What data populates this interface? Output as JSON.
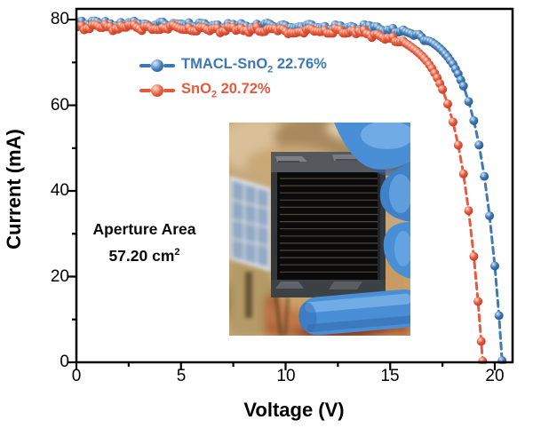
{
  "figure": {
    "x_axis": {
      "label": "Voltage (V)",
      "tick_labels": [
        "0",
        "5",
        "10",
        "15",
        "20"
      ],
      "tick_values": [
        0,
        5,
        10,
        15,
        20
      ],
      "minor_ticks": [
        2.5,
        7.5,
        12.5,
        17.5
      ]
    },
    "y_axis": {
      "label": "Current (mA)",
      "tick_labels": [
        "0",
        "20",
        "40",
        "60",
        "80"
      ],
      "tick_values": [
        0,
        20,
        40,
        60,
        80
      ],
      "minor_ticks": [
        10,
        30,
        50,
        70
      ]
    }
  },
  "legend": {
    "items": [
      {
        "name": "TMACL-SnO",
        "sub": "2",
        "suffix": " 22.76%",
        "color": "#3c78b6"
      },
      {
        "name": "SnO",
        "sub": "2",
        "suffix": " 20.72%",
        "color": "#e7593c"
      }
    ]
  },
  "annotation": {
    "line1": "Aperture Area",
    "line2": "57.20 cm",
    "line2_sup": "2"
  },
  "inset": {
    "content": "photo: dark solar module held by blue nitrile glove, rooftop solar panel and blurred ground in background"
  },
  "chart_data": {
    "type": "line+scatter (I-V curves)",
    "title": "",
    "xlabel": "Voltage (V)",
    "ylabel": "Current (mA)",
    "xlim": [
      0,
      20.85
    ],
    "ylim": [
      0,
      82.5
    ],
    "grid": false,
    "legend_position": "upper center",
    "series": [
      {
        "name": "TMACL-SnO2 22.76%",
        "color": "#3e7ab7",
        "color_dark": "#27578d",
        "color_light": "#d9eaf8",
        "noise": 0.45,
        "points": [
          [
            0,
            79.4
          ],
          [
            0.5,
            78.9
          ],
          [
            1,
            79.5
          ],
          [
            1.5,
            79.0
          ],
          [
            2,
            78.5
          ],
          [
            2.5,
            79.3
          ],
          [
            3,
            79.0
          ],
          [
            3.5,
            78.5
          ],
          [
            4,
            79.4
          ],
          [
            4.5,
            78.6
          ],
          [
            5,
            79.0
          ],
          [
            5.5,
            78.5
          ],
          [
            6,
            79.1
          ],
          [
            6.5,
            78.6
          ],
          [
            7,
            78.1
          ],
          [
            7.5,
            78.9
          ],
          [
            8,
            78.6
          ],
          [
            8.5,
            78.1
          ],
          [
            9,
            79.0
          ],
          [
            9.5,
            78.2
          ],
          [
            10,
            78.6
          ],
          [
            10.5,
            78.1
          ],
          [
            11,
            78.7
          ],
          [
            11.5,
            78.2
          ],
          [
            12,
            77.7
          ],
          [
            12.5,
            78.5
          ],
          [
            13,
            78.2
          ],
          [
            13.5,
            77.7
          ],
          [
            14,
            78.6
          ],
          [
            14.5,
            77.8
          ],
          [
            15,
            77.5
          ],
          [
            15.5,
            77.2
          ],
          [
            16,
            76.7
          ],
          [
            16.5,
            75.9
          ],
          [
            17,
            74.7
          ],
          [
            17.25,
            73.8
          ],
          [
            17.5,
            72.7
          ],
          [
            17.75,
            71.3
          ],
          [
            18,
            69.6
          ],
          [
            18.25,
            67.3
          ],
          [
            18.5,
            64.5
          ],
          [
            18.75,
            60.9
          ],
          [
            19,
            56.4
          ],
          [
            19.25,
            50.7
          ],
          [
            19.5,
            43.4
          ],
          [
            19.75,
            34.2
          ],
          [
            20,
            22.5
          ],
          [
            20.2,
            10.9
          ],
          [
            20.35,
            0.4
          ]
        ]
      },
      {
        "name": "SnO2 20.72%",
        "color": "#e75a3d",
        "color_dark": "#bf3a22",
        "color_light": "#fcdccd",
        "noise": 0.45,
        "points": [
          [
            0,
            78.3
          ],
          [
            0.5,
            77.9
          ],
          [
            1,
            78.6
          ],
          [
            1.5,
            78.3
          ],
          [
            2,
            77.8
          ],
          [
            2.5,
            78.7
          ],
          [
            3,
            77.9
          ],
          [
            3.5,
            78.3
          ],
          [
            4,
            77.7
          ],
          [
            4.5,
            78.4
          ],
          [
            5,
            77.8
          ],
          [
            5.5,
            77.4
          ],
          [
            6,
            78.1
          ],
          [
            6.5,
            77.8
          ],
          [
            7,
            77.3
          ],
          [
            7.5,
            78.2
          ],
          [
            8,
            77.4
          ],
          [
            8.5,
            77.8
          ],
          [
            9,
            77.2
          ],
          [
            9.5,
            77.9
          ],
          [
            10,
            77.3
          ],
          [
            10.5,
            76.9
          ],
          [
            11,
            77.6
          ],
          [
            11.5,
            77.3
          ],
          [
            12,
            76.8
          ],
          [
            12.5,
            77.7
          ],
          [
            13,
            76.9
          ],
          [
            13.5,
            77.3
          ],
          [
            14,
            76.5
          ],
          [
            14.5,
            76.2
          ],
          [
            15,
            75.6
          ],
          [
            15.5,
            74.8
          ],
          [
            16,
            73.6
          ],
          [
            16.25,
            72.7
          ],
          [
            16.5,
            71.6
          ],
          [
            16.75,
            70.3
          ],
          [
            17,
            68.6
          ],
          [
            17.25,
            66.4
          ],
          [
            17.5,
            63.7
          ],
          [
            17.75,
            60.3
          ],
          [
            18,
            56.1
          ],
          [
            18.25,
            50.7
          ],
          [
            18.5,
            44.0
          ],
          [
            18.75,
            35.4
          ],
          [
            19,
            24.7
          ],
          [
            19.2,
            14.2
          ],
          [
            19.35,
            4.9
          ],
          [
            19.42,
            0.3
          ]
        ]
      }
    ]
  }
}
